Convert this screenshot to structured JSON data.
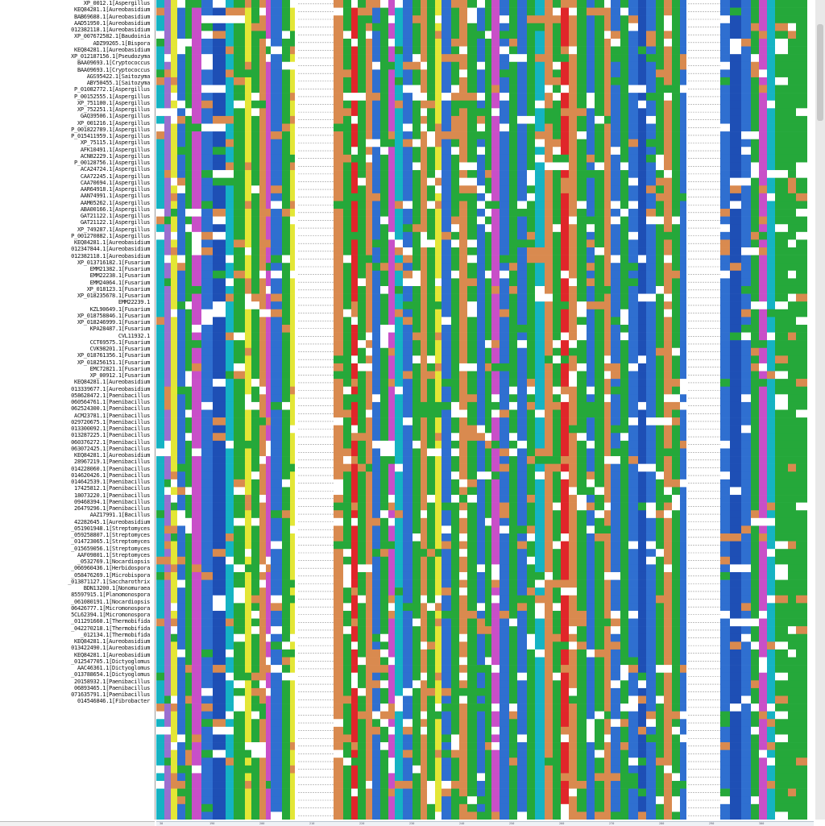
{
  "alignment": {
    "colors": {
      "blue": "#2f6fd0",
      "green": "#25a83a",
      "red": "#e0262a",
      "orange": "#d98a4f",
      "magenta": "#c84fc8",
      "purple": "#9a6fd0",
      "cyan": "#15b3c3",
      "yellow": "#e3e636",
      "darkblue": "#1e4fb5",
      "white": "#ffffff",
      "gap": "#9a9a9a"
    },
    "ruler_ticks": [
      "30",
      "190",
      "200",
      "210",
      "220",
      "230",
      "240",
      "250",
      "260",
      "270",
      "280",
      "290",
      "300"
    ],
    "sequences": [
      "XP_0012.1[Aspergillus",
      "KEQ84281.1[Aureobasidium",
      "BAB69688.1[Aureobasidium",
      "AAD51950.1[Aureobasidium",
      "012382118.1[Aureobasidium",
      "XP_007672582.1[Baudoinia",
      "ADZ99265.1[Bispora",
      "KEQ84281.1[Aureobasidium",
      "XP_012187156.1[Pseudozyma",
      "BAA09693.1[Cryptococcus",
      "BAA09693.1[Cryptococcus",
      "AGS95422.1[Saitozyma",
      "ABY50455.1[Saitozyma",
      "P_01082772.1[Aspergillus",
      "P_00152555.1[Aspergillus",
      "XP_751100.1[Aspergillus",
      "XP_752251.1[Aspergillus",
      "GAQ39506.1[Aspergillus",
      "XP_001216.1[Aspergillus",
      "P_001822789.1[Aspergillus",
      "P_015411959.1[Aspergillus",
      "XP_75115.1[Aspergillus",
      "AFK10491.1[Aspergillus",
      "ACN82229.1[Aspergillus",
      "P_00128756.1[Aspergillus",
      "ACA24724.1[Aspergillus",
      "CAA72245.1[Aspergillus",
      "CAA70694.1[Aspergillus",
      "AAR64918.1[Aspergillus",
      "AAN74991.1[Aspergillus",
      "AAM05262.1[Aspergillus",
      "ABA00166.1[Aspergillus",
      "GAT21122.1[Aspergillus",
      "GAT21122.1[Aspergillus",
      "XP_749287.1[Aspergillus",
      "P_001270882.1[Aspergillus",
      "KEQ84281.1[Aureobasidium",
      "012347844.1[Aureobasidium",
      "012382118.1[Aureobasidium",
      "XP_013716182.1[Fusarium",
      "EMM21382.1[Fusarium",
      "EMM22238.1[Fusarium",
      "EMM24064.1[Fusarium",
      "XP_018123.1[Fusarium",
      "XP_018235678.1[Fusarium",
      "EMM22239.1",
      "KZL90649.1[Fusarium",
      "XP_018758846.1[Fusarium",
      "XP_018246999.1[Fusarium",
      "KPA28487.1[Fusarium",
      "CVL11932.1",
      "CCT69575.1[Fusarium",
      "CVK98201.1[Fusarium",
      "XP_018761356.1[Fusarium",
      "XP_018256151.1[Fusarium",
      "EMC72821.1[Fusarium",
      "XP_00912.1[Fusarium",
      "KEQ84281.1[Aureobasidium",
      "013339677.1[Aureobasidium",
      "058628472.1[Paenibacillus",
      "060564761.1[Paenibacillus",
      "062524300.1[Paenibacillus",
      "ACM23781.1[Paenibacillus",
      "029720675.1[Paenibacillus",
      "013300092.1[Paenibacillus",
      "013287225.1[Paenibacillus",
      "060376272.1[Paenibacillus",
      "063072425.1[Paenibacillus",
      "KEQ84281.1[Aureobasidium",
      "28967219.1[Paenibacillus",
      "014228060.1[Paenibacillus",
      "014620426.1[Paenibacillus",
      "014642539.1[Paenibacillus",
      "17425812.1[Paenibacillus",
      "18073220.1[Paenibacillus",
      "09468394.1[Paenibacillus",
      "26479296.1[Paenibacillus",
      "AAZ17991.1[Bacillus",
      "42282645.1[Aureobasidium",
      "_051901948.1[Streptomyces",
      "_059258807.1[Streptomyces",
      "_014723065.1[Streptomyces",
      "_015659056.1[Streptomyces",
      "AAF09801.1[Streptomyces",
      "_0532769.1[Nocardiopsis",
      "_066960436.1[Herbidospora",
      "_058476269.1[Microbispora",
      "_013871127.1[Saccharothrix",
      "BDN13200.1[Nonomuraea",
      "85597915.1[Planomonospora",
      "_061080191.1[Nocardiopsis",
      "06426777.1[Micromonospora",
      "5CL62394.1[Micromonospora",
      "_011291660.1[Thermobifida",
      "_042270218.1[Thermobifida",
      "_012134.1[Thermobifida",
      "KEQ84281.1[Aureobasidium",
      "013422490.1[Aureobasidium",
      "KEQ84281.1[Aureobasidium",
      "_012547705.1[Dictyoglomus",
      "AAC46361.1[Dictyoglomus",
      "_013788654.1[Dictyoglomus",
      "20158932.1[Paenibacillus",
      "06893465.1[Paenibacillus",
      "071635791.1[Paenibacillus",
      "014546846.1[Fibrobacter"
    ]
  }
}
